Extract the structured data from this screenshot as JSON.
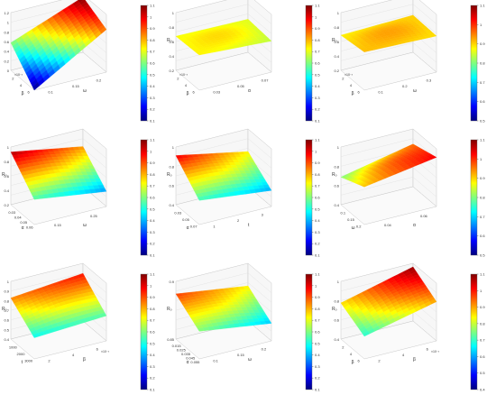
{
  "figure": {
    "panels": [
      {
        "id": "r1c1",
        "type": "surface3d",
        "z_ticks": [
          "0",
          "0.2",
          "0.4",
          "0.6",
          "0.8",
          "1",
          "1.2"
        ],
        "y_ticks": [
          "0.1",
          "0.15",
          "0.2"
        ],
        "y_axis_label": "ω",
        "x_ticks": [
          "2",
          "4",
          "6"
        ],
        "x_multiplier": "×10⁻³",
        "x_axis_label": "β",
        "surface_corners": {
          "front": 0.0,
          "right": 0.85,
          "back": 1.1,
          "left": 0.55
        },
        "colorbar_ticks": [
          "0.1",
          "0.2",
          "0.3",
          "0.4",
          "0.5",
          "0.6",
          "0.7",
          "0.8",
          "0.9",
          "1",
          "1.1"
        ]
      },
      {
        "id": "r1c2",
        "type": "surface3d",
        "z_axis_label": "Rₒ",
        "z_ticks": [
          "0.2",
          "0.4",
          "0.6",
          "0.8",
          "1"
        ],
        "y_ticks": [
          "0.03",
          "0.05",
          "0.07"
        ],
        "y_axis_label": "α",
        "x_ticks": [
          "2",
          "4",
          "6"
        ],
        "x_multiplier": "×10⁻³",
        "x_axis_label": "β",
        "surface_corners": {
          "front": 0.7,
          "right": 0.62,
          "back": 0.66,
          "left": 0.68
        },
        "colorbar_ticks": [
          "0.1",
          "0.2",
          "0.3",
          "0.4",
          "0.5",
          "0.6",
          "0.7",
          "0.8",
          "0.9",
          "1",
          "1.1"
        ]
      },
      {
        "id": "r1c3",
        "type": "surface3d",
        "z_axis_label": "Rₒ",
        "z_ticks": [
          "0.2",
          "0.4",
          "0.6",
          "0.8",
          "1"
        ],
        "y_ticks": [
          "0.1",
          "0.2",
          "0.3"
        ],
        "y_axis_label": "ω",
        "x_ticks": [
          "2",
          "4",
          "6"
        ],
        "x_multiplier": "×10⁻³",
        "x_axis_label": "β",
        "surface_corners": {
          "front": 0.76,
          "right": 0.72,
          "back": 0.74,
          "left": 0.7
        },
        "colorbar_ticks": [
          "0.5",
          "0.6",
          "0.7",
          "0.8",
          "0.9",
          "1",
          "1.1"
        ]
      },
      {
        "id": "r2c1",
        "type": "surface3d",
        "z_axis_label": "Rₒ",
        "z_ticks": [
          "0.2",
          "0.4",
          "0.6",
          "0.8",
          "1"
        ],
        "y_ticks": [
          "0.15",
          "0.25"
        ],
        "y_axis_label": "ω",
        "x_ticks": [
          "0.03",
          "0.04",
          "0.05",
          "0.06"
        ],
        "x_axis_label": "α",
        "surface_corners": {
          "front": 0.5,
          "right": 0.3,
          "back": 0.8,
          "left": 1.05
        },
        "colorbar_ticks": [
          "0.1",
          "0.2",
          "0.3",
          "0.4",
          "0.5",
          "0.6",
          "0.7",
          "0.8",
          "0.9",
          "1",
          "1.1"
        ]
      },
      {
        "id": "r2c2",
        "type": "surface3d",
        "z_axis_label": "Rₒ",
        "z_ticks": [
          "0.4",
          "0.6",
          "0.8",
          "1"
        ],
        "y_ticks": [
          "1",
          "2",
          "3"
        ],
        "y_axis_label": "t",
        "x_ticks": [
          "0.03",
          "0.05",
          "0.07"
        ],
        "x_axis_label": "α",
        "surface_corners": {
          "front": 0.48,
          "right": 0.32,
          "back": 0.7,
          "left": 0.98
        },
        "colorbar_ticks": [
          "0.1",
          "0.2",
          "0.3",
          "0.4",
          "0.5",
          "0.6",
          "0.7",
          "0.8",
          "0.9",
          "1",
          "1.1"
        ]
      },
      {
        "id": "r2c3",
        "type": "surface3d",
        "z_axis_label": "Rₒ",
        "z_ticks": [
          "0.4",
          "0.6",
          "0.8",
          "1"
        ],
        "y_ticks": [
          "0.04",
          "0.06"
        ],
        "y_axis_label": "α",
        "x_ticks": [
          "0.1",
          "0.15",
          "0.2"
        ],
        "x_axis_label": "ω",
        "surface_corners": {
          "front": 0.75,
          "right": 0.98,
          "back": 0.85,
          "left": 0.55
        },
        "colorbar_ticks": [
          "0.5",
          "0.6",
          "0.7",
          "0.8",
          "0.9",
          "1",
          "1.1"
        ]
      },
      {
        "id": "r3c1",
        "type": "surface3d",
        "z_axis_label": "Rₒ",
        "z_ticks": [
          "0.4",
          "0.5",
          "0.6",
          "0.7",
          "0.8",
          "0.9",
          "1"
        ],
        "y_ticks": [
          "2",
          "4",
          "6"
        ],
        "y_axis_label": "β",
        "y_multiplier": "×10⁻³",
        "x_ticks": [
          "1000",
          "2000",
          "3000"
        ],
        "x_axis_label": "t",
        "surface_corners": {
          "front": 0.42,
          "right": 0.5,
          "back": 0.95,
          "left": 0.82
        },
        "colorbar_ticks": [
          "0.1",
          "0.2",
          "0.3",
          "0.4",
          "0.5",
          "0.6",
          "0.7",
          "0.8",
          "0.9",
          "1",
          "1.1"
        ]
      },
      {
        "id": "r3c2",
        "type": "surface3d",
        "z_axis_label": "Rₒ",
        "z_ticks": [
          "0.85",
          "0.9"
        ],
        "y_ticks": [
          "0.1",
          "0.15",
          "0.2"
        ],
        "y_axis_label": "ω",
        "x_ticks": [
          "0.015",
          "0.025",
          "0.035",
          "0.045",
          "0.055"
        ],
        "x_axis_label": "α",
        "surface_corners": {
          "front": 0.55,
          "right": 0.35,
          "back": 0.7,
          "left": 0.9
        },
        "colorbar_ticks": [
          "0.1",
          "0.2",
          "0.3",
          "0.4",
          "0.5",
          "0.6",
          "0.7",
          "0.8",
          "0.9",
          "1",
          "1.1"
        ]
      },
      {
        "id": "r3c3",
        "type": "surface3d",
        "z_axis_label": "Rₒ",
        "z_ticks": [
          "0.4",
          "0.6",
          "0.8",
          "1"
        ],
        "y_ticks": [
          "2",
          "4",
          "6"
        ],
        "y_axis_label": "β",
        "y_multiplier": "×10⁻³",
        "x_ticks": [
          "2",
          "4",
          "6"
        ],
        "x_axis_label": "β",
        "surface_corners": {
          "front": 0.45,
          "right": 0.78,
          "back": 1.08,
          "left": 0.72
        },
        "colorbar_ticks": [
          "0.4",
          "0.5",
          "0.6",
          "0.7",
          "0.8",
          "0.9",
          "1",
          "1.1"
        ]
      }
    ]
  },
  "chart_data": [
    {
      "type": "surface",
      "panel": "r1c1",
      "x_label": "β",
      "y_label": "ω",
      "corners": {
        "front": 0.0,
        "right": 0.85,
        "back": 1.1,
        "left": 0.55
      },
      "zlim": [
        0,
        1.2
      ],
      "colorbar": [
        0.1,
        1.1
      ]
    },
    {
      "type": "surface",
      "panel": "r1c2",
      "x_label": "β",
      "y_label": "α",
      "z_label": "Rₒ",
      "corners": {
        "front": 0.7,
        "right": 0.62,
        "back": 0.66,
        "left": 0.68
      },
      "zlim": [
        0.2,
        1
      ],
      "colorbar": [
        0.1,
        1.1
      ]
    },
    {
      "type": "surface",
      "panel": "r1c3",
      "x_label": "β",
      "y_label": "ω",
      "z_label": "Rₒ",
      "corners": {
        "front": 0.76,
        "right": 0.72,
        "back": 0.74,
        "left": 0.7
      },
      "zlim": [
        0.2,
        1
      ],
      "colorbar": [
        0.5,
        1.1
      ]
    },
    {
      "type": "surface",
      "panel": "r2c1",
      "x_label": "α",
      "y_label": "ω",
      "z_label": "Rₒ",
      "corners": {
        "front": 0.5,
        "right": 0.3,
        "back": 0.8,
        "left": 1.05
      },
      "zlim": [
        0.2,
        1
      ],
      "colorbar": [
        0.1,
        1.1
      ]
    },
    {
      "type": "surface",
      "panel": "r2c2",
      "x_label": "α",
      "y_label": "t",
      "z_label": "Rₒ",
      "corners": {
        "front": 0.48,
        "right": 0.32,
        "back": 0.7,
        "left": 0.98
      },
      "zlim": [
        0.4,
        1
      ],
      "colorbar": [
        0.1,
        1.1
      ]
    },
    {
      "type": "surface",
      "panel": "r2c3",
      "x_label": "ω",
      "y_label": "α",
      "z_label": "Rₒ",
      "corners": {
        "front": 0.75,
        "right": 0.98,
        "back": 0.85,
        "left": 0.55
      },
      "zlim": [
        0.4,
        1
      ],
      "colorbar": [
        0.5,
        1.1
      ]
    },
    {
      "type": "surface",
      "panel": "r3c1",
      "x_label": "t",
      "y_label": "β",
      "z_label": "Rₒ",
      "corners": {
        "front": 0.42,
        "right": 0.5,
        "back": 0.95,
        "left": 0.82
      },
      "zlim": [
        0.4,
        1
      ],
      "colorbar": [
        0.1,
        1.1
      ]
    },
    {
      "type": "surface",
      "panel": "r3c2",
      "x_label": "α",
      "y_label": "ω",
      "z_label": "Rₒ",
      "corners": {
        "front": 0.55,
        "right": 0.35,
        "back": 0.7,
        "left": 0.9
      },
      "zlim": [
        0.8,
        0.95
      ],
      "colorbar": [
        0.1,
        1.1
      ]
    },
    {
      "type": "surface",
      "panel": "r3c3",
      "x_label": "β",
      "y_label": "β",
      "z_label": "Rₒ",
      "corners": {
        "front": 0.45,
        "right": 0.78,
        "back": 1.08,
        "left": 0.72
      },
      "zlim": [
        0.4,
        1
      ],
      "colorbar": [
        0.4,
        1.1
      ]
    }
  ]
}
